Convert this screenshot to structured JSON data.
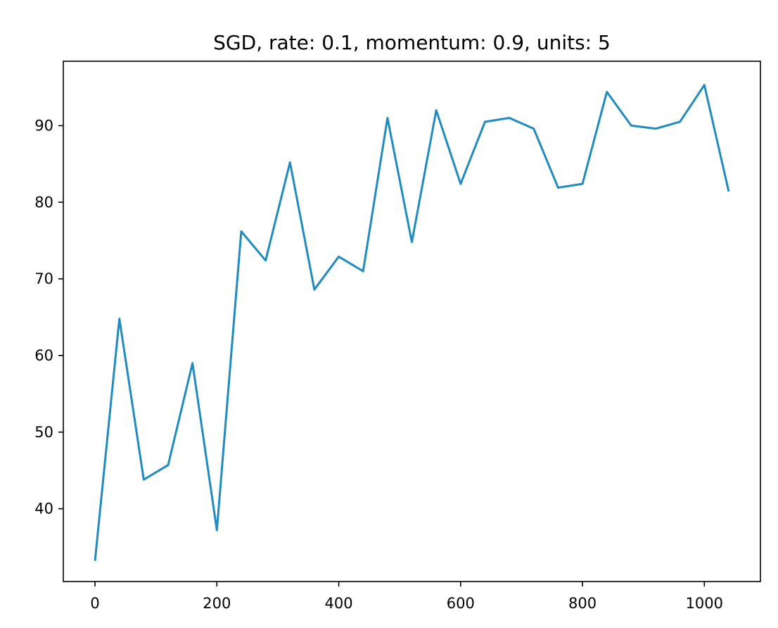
{
  "chart_data": {
    "type": "line",
    "title": "SGD, rate: 0.1, momentum: 0.9, units: 5",
    "xlabel": "",
    "ylabel": "",
    "xlim": [
      -52,
      1092
    ],
    "ylim": [
      30.5,
      98.4
    ],
    "grid": false,
    "legend": "none",
    "series_color": "#1f8bc0",
    "xticks": [
      0,
      200,
      400,
      600,
      800,
      1000
    ],
    "xtick_labels": [
      "0",
      "200",
      "400",
      "600",
      "800",
      "1000"
    ],
    "yticks": [
      40,
      50,
      60,
      70,
      80,
      90
    ],
    "ytick_labels": [
      "40",
      "50",
      "60",
      "70",
      "80",
      "90"
    ],
    "series": [
      {
        "x": [
          0,
          40,
          80,
          120,
          160,
          200,
          240,
          280,
          320,
          360,
          400,
          440,
          480,
          520,
          560,
          600,
          640,
          680,
          720,
          760,
          800,
          840,
          880,
          920,
          960,
          1000,
          1040
        ],
        "y": [
          33.2,
          64.8,
          43.8,
          45.7,
          59.0,
          37.2,
          76.2,
          72.4,
          85.2,
          68.6,
          72.9,
          71.0,
          91.0,
          74.8,
          92.0,
          82.4,
          90.5,
          91.0,
          89.6,
          81.9,
          82.4,
          94.4,
          90.0,
          89.6,
          90.5,
          95.3,
          81.4
        ]
      }
    ]
  }
}
